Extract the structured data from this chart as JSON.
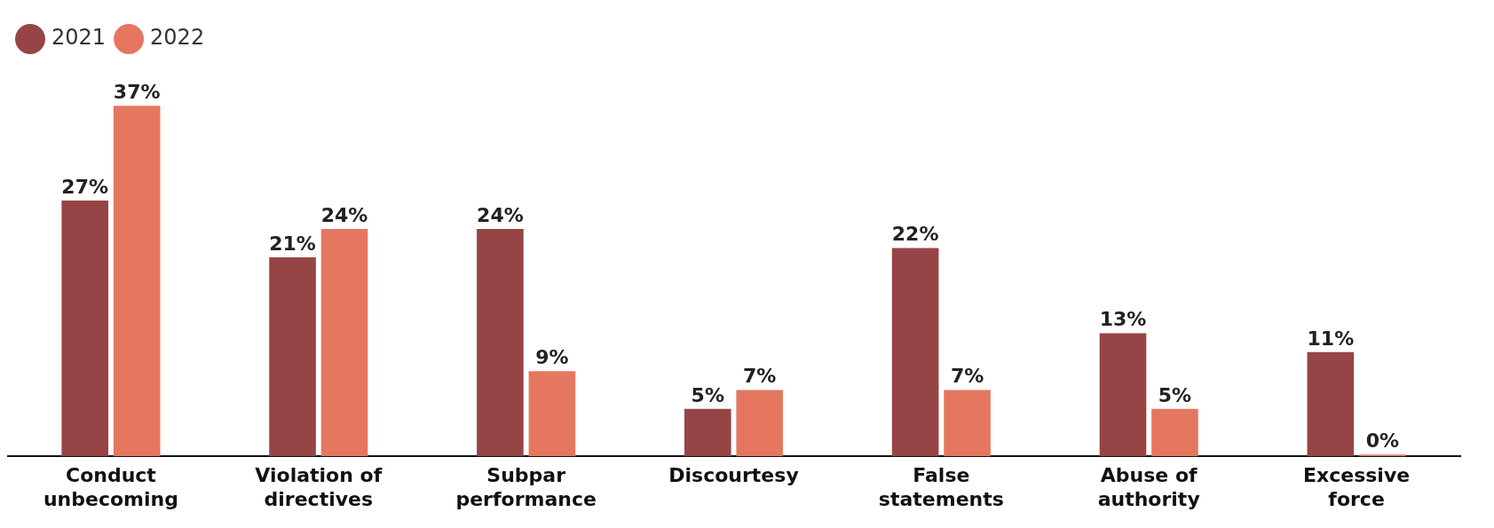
{
  "chart_data": {
    "type": "bar",
    "categories": [
      "Conduct unbecoming",
      "Violation of directives",
      "Subpar performance",
      "Discourtesy",
      "False statements",
      "Abuse of authority",
      "Excessive force"
    ],
    "series": [
      {
        "name": "2021",
        "color": "#974446",
        "values": [
          27,
          21,
          24,
          5,
          22,
          13,
          11
        ],
        "value_labels": [
          "27%",
          "21%",
          "24%",
          "5%",
          "22%",
          "13%",
          "11%"
        ]
      },
      {
        "name": "2022",
        "color": "#e57760",
        "values": [
          37,
          24,
          9,
          7,
          7,
          5,
          0
        ],
        "value_labels": [
          "37%",
          "24%",
          "9%",
          "7%",
          "7%",
          "5%",
          "0%"
        ]
      }
    ],
    "legend": "top left",
    "grid": false
  }
}
